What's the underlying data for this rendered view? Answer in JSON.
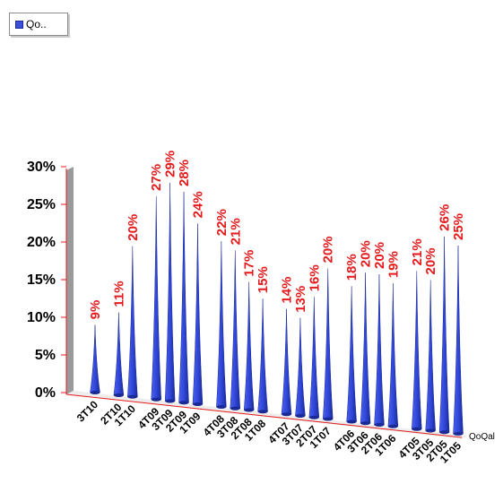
{
  "legend": {
    "label": "Qo.."
  },
  "chart_data": {
    "type": "bar",
    "style": "3d-cones",
    "x_axis_label": "QoQal",
    "ylim": [
      0,
      30
    ],
    "y_ticks": [
      "0%",
      "5%",
      "10%",
      "15%",
      "20%",
      "25%",
      "30%"
    ],
    "categories": [
      "3T10",
      "2T10",
      "1T10",
      "4T09",
      "3T09",
      "2T09",
      "1T09",
      "4T08",
      "3T08",
      "2T08",
      "1T08",
      "4T07",
      "3T07",
      "2T07",
      "1T07",
      "4T06",
      "3T06",
      "2T06",
      "1T06",
      "4T05",
      "3T05",
      "2T05",
      "1T05"
    ],
    "values": [
      9,
      11,
      20,
      27,
      29,
      28,
      24,
      22,
      21,
      17,
      15,
      14,
      13,
      16,
      20,
      18,
      20,
      20,
      19,
      21,
      20,
      26,
      25
    ],
    "value_labels": [
      "9%",
      "11%",
      "20%",
      "27%",
      "29%",
      "28%",
      "24%",
      "22%",
      "21%",
      "17%",
      "15%",
      "14%",
      "13%",
      "16%",
      "20%",
      "18%",
      "20%",
      "20%",
      "19%",
      "21%",
      "20%",
      "26%",
      "25%"
    ],
    "colors": {
      "bar": "#2f45d6",
      "bar_dark": "#1a2a95",
      "data_label": "#e41a1c",
      "axis": "#e41a1c",
      "wall": "#999999"
    }
  }
}
